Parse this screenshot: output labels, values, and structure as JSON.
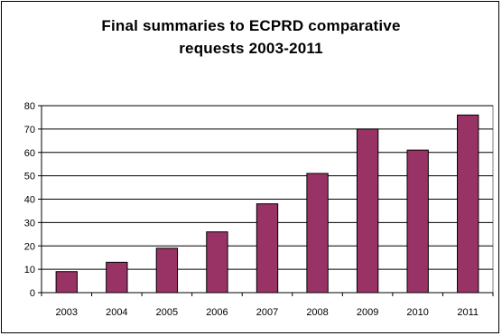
{
  "chart_data": {
    "type": "bar",
    "title_lines": [
      "Final summaries to ECPRD comparative",
      "requests 2003-2011"
    ],
    "categories": [
      "2003",
      "2004",
      "2005",
      "2006",
      "2007",
      "2008",
      "2009",
      "2010",
      "2011"
    ],
    "values": [
      9,
      13,
      19,
      26,
      38,
      51,
      70,
      61,
      76
    ],
    "ylim": [
      0,
      80
    ],
    "yticks": [
      "0",
      "10",
      "20",
      "30",
      "40",
      "50",
      "60",
      "70",
      "80"
    ],
    "grid": true,
    "legend": "none",
    "bar_color": "#993366",
    "plot_bg": "#ffffff",
    "gridline_color": "#000000"
  }
}
